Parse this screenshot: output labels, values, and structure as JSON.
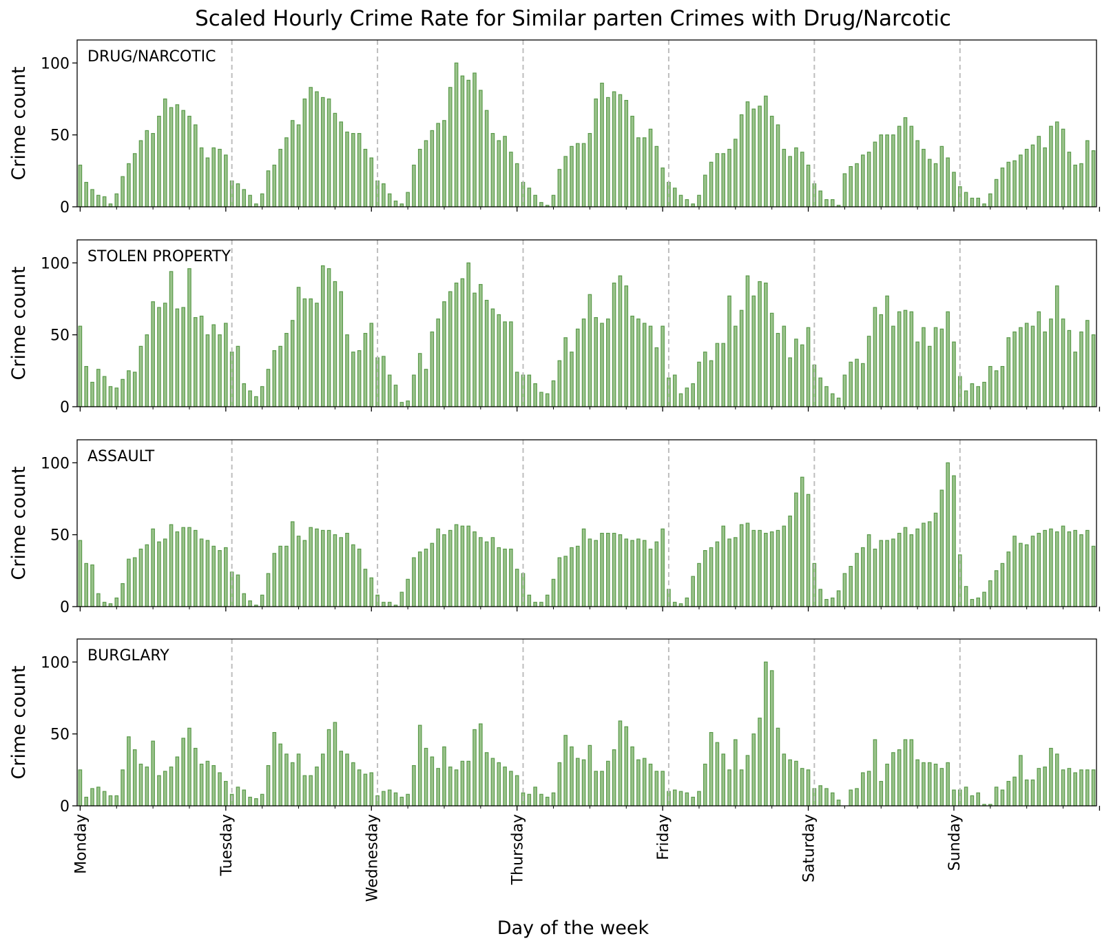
{
  "figure": {
    "title": "Scaled Hourly Crime Rate for Similar parten Crimes with Drug/Narcotic",
    "xlabel": "Day of the week",
    "ylabel": "Crime count"
  },
  "colors": {
    "bar_fill": "#9bc38c",
    "bar_edge": "#5a9a4a",
    "separator": "#bdbdbd"
  },
  "chart_data": [
    {
      "type": "bar",
      "panel_label": "DRUG/NARCOTIC",
      "ylabel": "Crime count",
      "ylim": [
        0,
        116
      ],
      "yticks": [
        0,
        50,
        100
      ],
      "xtick_labels": [
        "Monday",
        "Tuesday",
        "Wednesday",
        "Thursday",
        "Friday",
        "Saturday",
        "Sunday"
      ],
      "values": [
        29,
        17,
        12,
        8,
        7,
        2,
        9,
        21,
        30,
        37,
        46,
        53,
        51,
        63,
        75,
        69,
        71,
        67,
        63,
        57,
        41,
        34,
        41,
        40,
        36,
        18,
        16,
        12,
        8,
        2,
        9,
        25,
        29,
        40,
        48,
        60,
        57,
        75,
        83,
        80,
        76,
        75,
        65,
        59,
        52,
        51,
        51,
        40,
        34,
        18,
        16,
        9,
        4,
        2,
        10,
        29,
        40,
        46,
        53,
        58,
        60,
        83,
        100,
        91,
        88,
        93,
        81,
        67,
        51,
        46,
        49,
        38,
        30,
        17,
        13,
        8,
        3,
        1,
        8,
        26,
        35,
        42,
        44,
        44,
        51,
        75,
        86,
        76,
        80,
        78,
        74,
        63,
        48,
        48,
        54,
        42,
        27,
        17,
        13,
        8,
        5,
        2,
        8,
        22,
        31,
        37,
        37,
        40,
        47,
        64,
        73,
        68,
        70,
        77,
        63,
        57,
        40,
        35,
        41,
        38,
        29,
        16,
        11,
        5,
        5,
        1,
        23,
        28,
        30,
        36,
        38,
        45,
        50,
        50,
        50,
        56,
        62,
        56,
        46,
        40,
        33,
        30,
        42,
        34,
        24,
        14,
        10,
        6,
        6,
        2,
        9,
        19,
        27,
        31,
        32,
        36,
        40,
        43,
        49,
        41,
        56,
        59,
        54,
        38,
        29,
        30,
        46,
        39
      ]
    },
    {
      "type": "bar",
      "panel_label": "STOLEN PROPERTY",
      "ylabel": "Crime count",
      "ylim": [
        0,
        116
      ],
      "yticks": [
        0,
        50,
        100
      ],
      "xtick_labels": [
        "Monday",
        "Tuesday",
        "Wednesday",
        "Thursday",
        "Friday",
        "Saturday",
        "Sunday"
      ],
      "values": [
        56,
        28,
        17,
        26,
        21,
        14,
        13,
        19,
        25,
        24,
        42,
        50,
        73,
        69,
        72,
        94,
        68,
        69,
        96,
        62,
        63,
        50,
        57,
        50,
        58,
        38,
        42,
        16,
        11,
        7,
        14,
        26,
        39,
        42,
        51,
        60,
        83,
        75,
        75,
        72,
        98,
        96,
        87,
        80,
        50,
        38,
        39,
        51,
        58,
        34,
        35,
        22,
        15,
        3,
        4,
        22,
        37,
        26,
        52,
        61,
        73,
        80,
        86,
        89,
        100,
        79,
        85,
        74,
        68,
        64,
        59,
        59,
        24,
        22,
        22,
        16,
        10,
        9,
        18,
        32,
        48,
        38,
        54,
        61,
        78,
        62,
        58,
        61,
        86,
        91,
        84,
        63,
        61,
        58,
        56,
        41,
        56,
        20,
        22,
        9,
        13,
        16,
        31,
        38,
        32,
        44,
        44,
        77,
        56,
        67,
        91,
        77,
        87,
        86,
        65,
        51,
        56,
        34,
        47,
        43,
        55,
        29,
        20,
        14,
        9,
        6,
        22,
        31,
        33,
        30,
        49,
        69,
        64,
        77,
        56,
        66,
        67,
        66,
        45,
        55,
        42,
        55,
        54,
        66,
        45,
        21,
        11,
        16,
        14,
        17,
        28,
        25,
        28,
        48,
        52,
        55,
        58,
        56,
        66,
        52,
        61,
        84,
        61,
        53,
        38,
        52,
        60,
        50
      ]
    },
    {
      "type": "bar",
      "panel_label": "ASSAULT",
      "ylabel": "Crime count",
      "ylim": [
        0,
        116
      ],
      "yticks": [
        0,
        50,
        100
      ],
      "xtick_labels": [
        "Monday",
        "Tuesday",
        "Wednesday",
        "Thursday",
        "Friday",
        "Saturday",
        "Sunday"
      ],
      "values": [
        46,
        30,
        29,
        9,
        3,
        2,
        6,
        16,
        33,
        34,
        40,
        43,
        54,
        45,
        47,
        57,
        52,
        55,
        55,
        53,
        47,
        46,
        42,
        39,
        41,
        24,
        22,
        9,
        4,
        1,
        8,
        23,
        37,
        42,
        42,
        59,
        49,
        46,
        55,
        54,
        53,
        53,
        50,
        48,
        51,
        43,
        40,
        26,
        20,
        8,
        3,
        3,
        1,
        10,
        19,
        34,
        38,
        40,
        44,
        54,
        50,
        53,
        57,
        56,
        56,
        52,
        48,
        45,
        48,
        41,
        40,
        40,
        26,
        23,
        8,
        3,
        3,
        8,
        19,
        34,
        35,
        41,
        42,
        54,
        47,
        46,
        51,
        51,
        51,
        50,
        47,
        46,
        47,
        46,
        40,
        45,
        54,
        12,
        3,
        2,
        6,
        21,
        30,
        39,
        41,
        45,
        56,
        47,
        48,
        57,
        58,
        53,
        53,
        51,
        52,
        53,
        56,
        63,
        79,
        90,
        78,
        30,
        12,
        5,
        6,
        11,
        23,
        28,
        37,
        41,
        50,
        40,
        46,
        46,
        47,
        51,
        55,
        50,
        54,
        58,
        59,
        65,
        81,
        100,
        91,
        36,
        14,
        5,
        6,
        10,
        18,
        25,
        30,
        38,
        49,
        44,
        43,
        49,
        51,
        53,
        54,
        52,
        56,
        52,
        53,
        50,
        53,
        42
      ]
    },
    {
      "type": "bar",
      "panel_label": "BURGLARY",
      "ylabel": "Crime count",
      "ylim": [
        0,
        116
      ],
      "yticks": [
        0,
        50,
        100
      ],
      "xtick_labels": [
        "Monday",
        "Tuesday",
        "Wednesday",
        "Thursday",
        "Friday",
        "Saturday",
        "Sunday"
      ],
      "values": [
        25,
        6,
        12,
        13,
        10,
        7,
        7,
        25,
        48,
        39,
        29,
        27,
        45,
        21,
        24,
        27,
        34,
        47,
        54,
        40,
        29,
        31,
        28,
        23,
        17,
        8,
        13,
        11,
        6,
        5,
        8,
        28,
        51,
        43,
        36,
        30,
        36,
        21,
        21,
        27,
        36,
        53,
        58,
        38,
        36,
        30,
        25,
        22,
        23,
        7,
        10,
        11,
        9,
        6,
        8,
        28,
        56,
        40,
        34,
        26,
        41,
        27,
        25,
        31,
        31,
        53,
        57,
        37,
        33,
        30,
        27,
        24,
        21,
        9,
        8,
        13,
        8,
        6,
        9,
        30,
        49,
        41,
        33,
        32,
        42,
        24,
        24,
        31,
        39,
        59,
        55,
        41,
        32,
        33,
        29,
        24,
        24,
        10,
        11,
        10,
        9,
        6,
        10,
        29,
        51,
        44,
        36,
        25,
        46,
        25,
        35,
        50,
        61,
        100,
        94,
        54,
        36,
        32,
        31,
        26,
        25,
        12,
        14,
        12,
        9,
        4,
        0,
        11,
        12,
        23,
        24,
        46,
        17,
        29,
        37,
        39,
        46,
        46,
        32,
        30,
        30,
        29,
        26,
        30,
        11,
        11,
        13,
        7,
        9,
        1,
        1,
        13,
        11,
        17,
        20,
        35,
        18,
        18,
        26,
        27,
        40,
        36,
        25,
        26,
        23,
        25,
        25,
        25
      ]
    }
  ]
}
